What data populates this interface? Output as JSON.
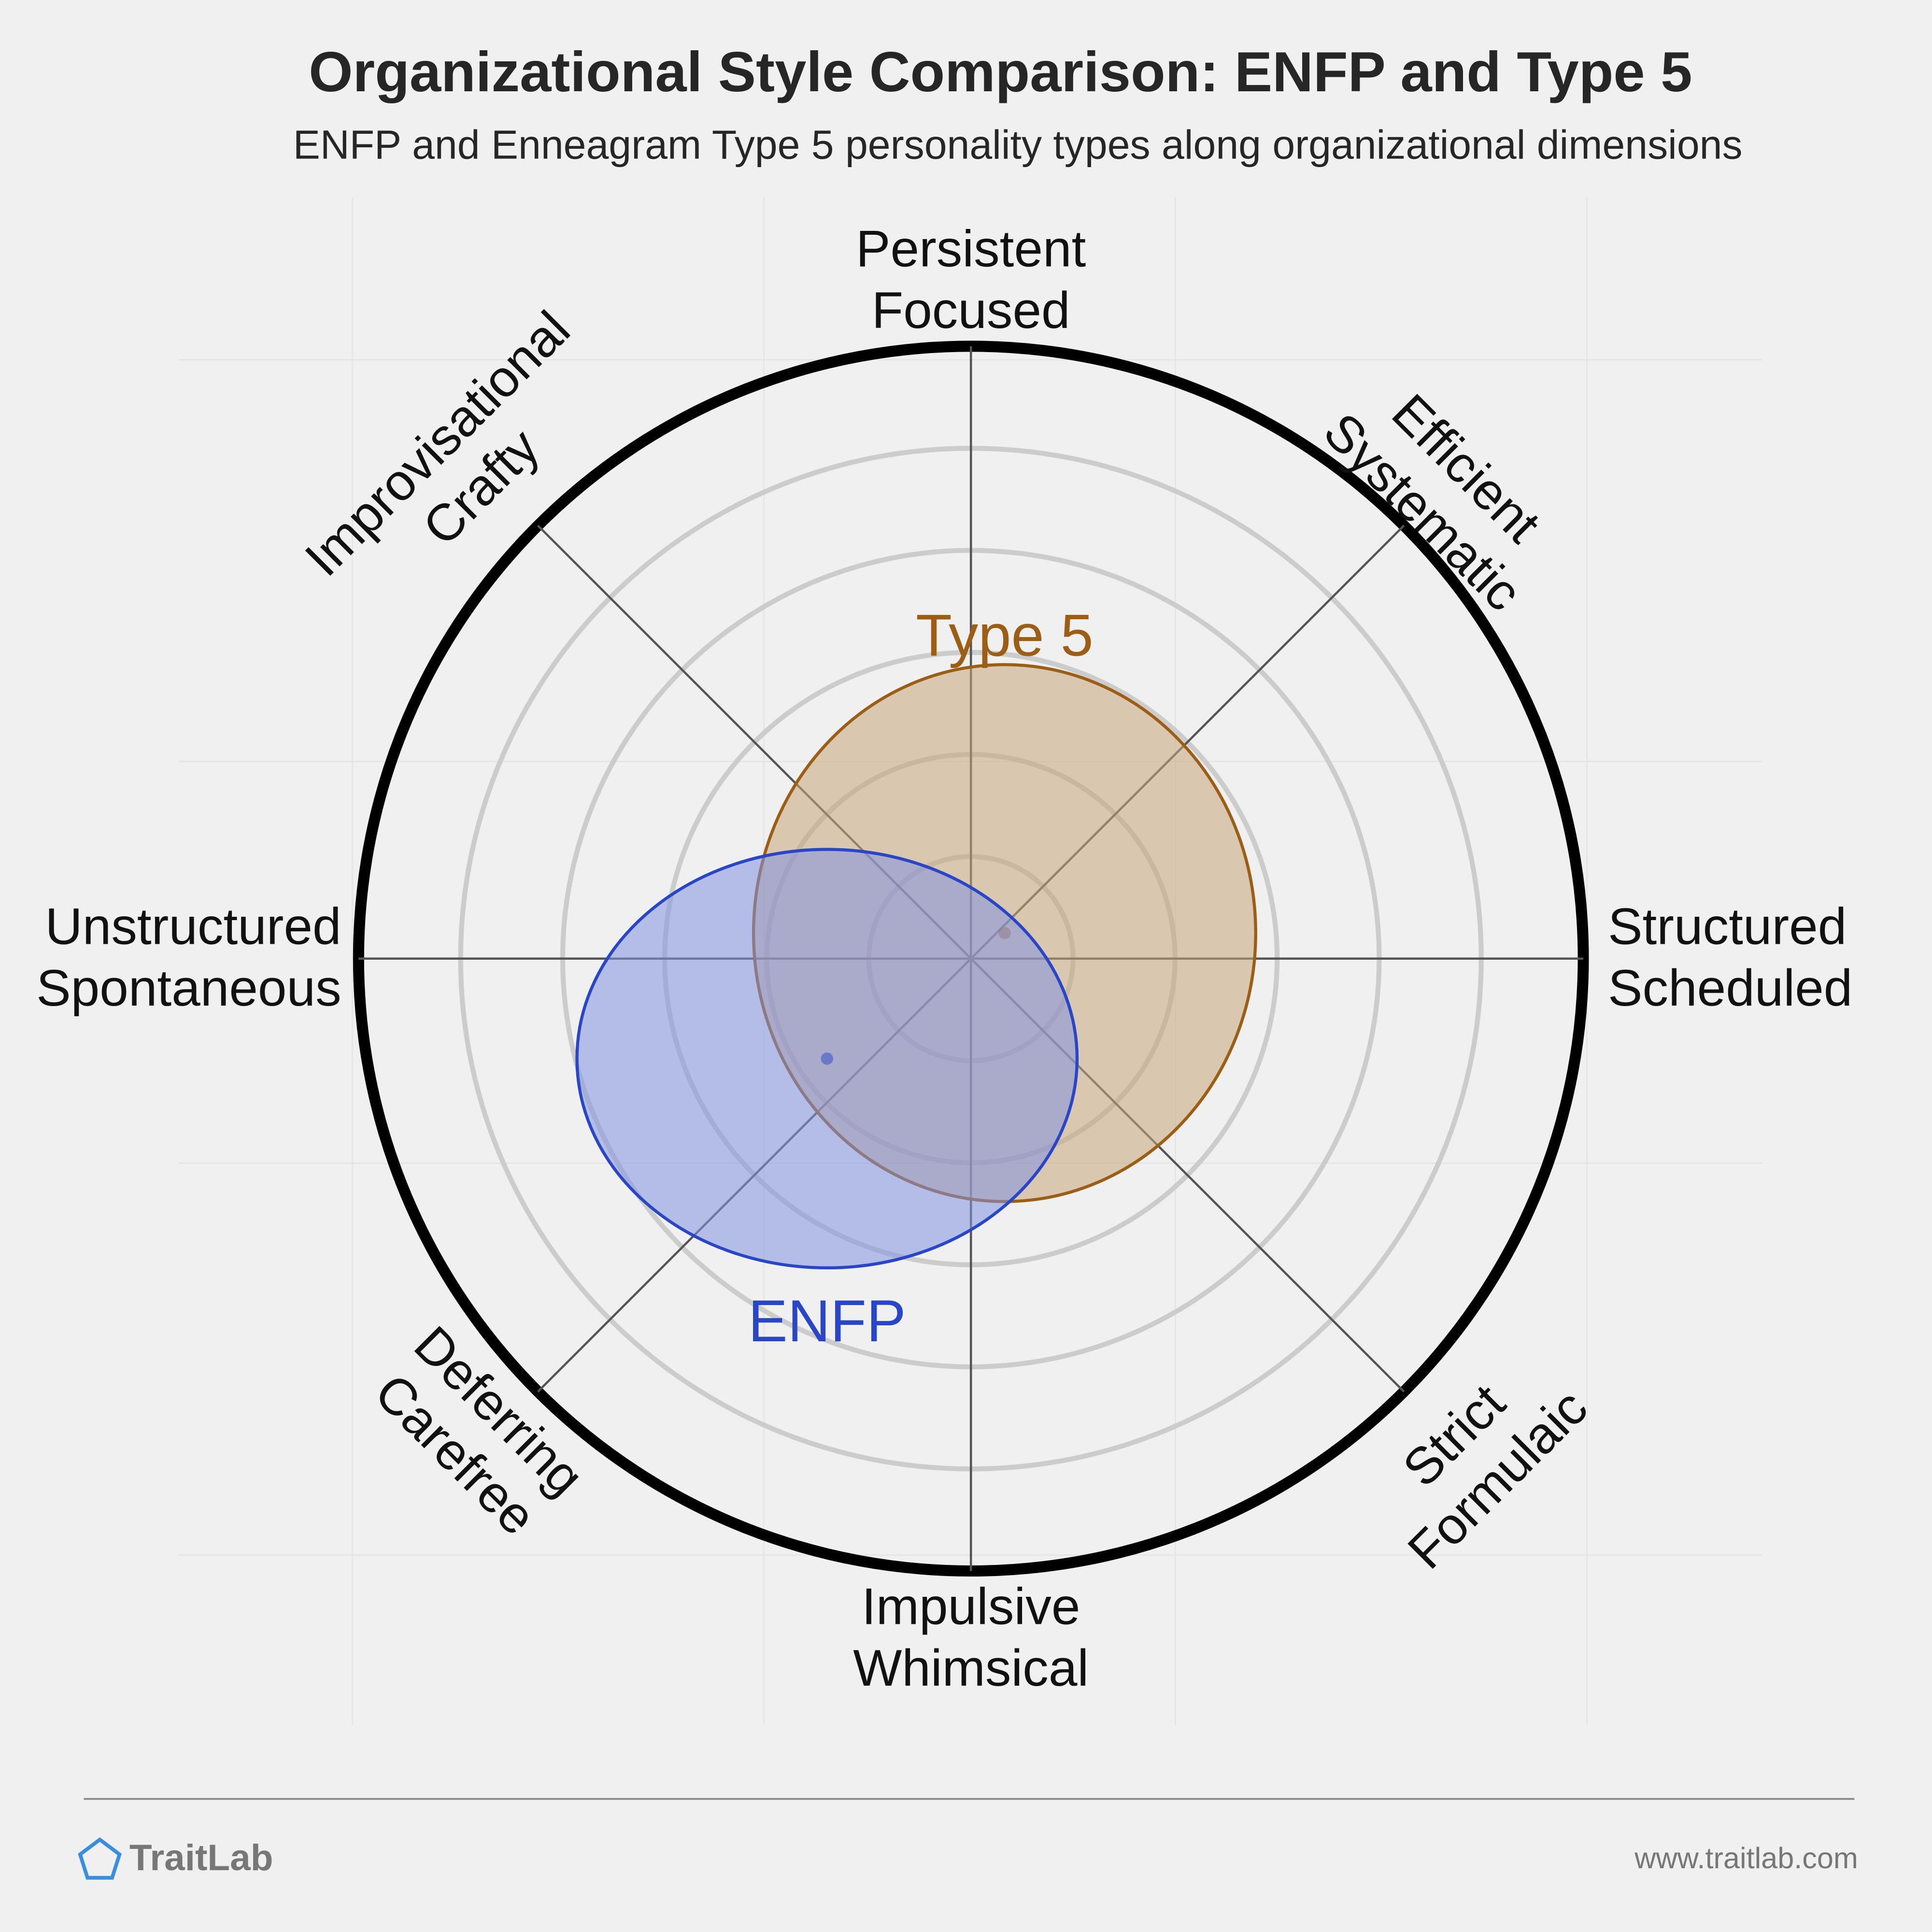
{
  "chart_data": {
    "type": "compass",
    "title": "Organizational Style Comparison: ENFP and Type 5",
    "subtitle": "ENFP and Enneagram Type 5 personality types along organizational dimensions",
    "axes": [
      [
        "Persistent",
        "Focused"
      ],
      [
        "Efficient",
        "Systematic"
      ],
      [
        "Structured",
        "Scheduled"
      ],
      [
        "Strict",
        "Formulaic"
      ],
      [
        "Impulsive",
        "Whimsical"
      ],
      [
        "Deferring",
        "Carefree"
      ],
      [
        "Unstructured",
        "Spontaneous"
      ],
      [
        "Improvisational",
        "Crafty"
      ]
    ],
    "rlim": [
      0,
      6
    ],
    "rticks": [
      1,
      2,
      3,
      4,
      5,
      6
    ],
    "series": [
      {
        "name": "Type 5",
        "color": "#9b5e14",
        "fill": "#c8a67c",
        "x": 0.33,
        "y": 0.25,
        "rx": 2.46,
        "ry": 2.63
      },
      {
        "name": "ENFP",
        "color": "#2a46c8",
        "fill": "#8492e2",
        "x": -1.41,
        "y": -0.98,
        "rx": 2.45,
        "ry": 2.05
      }
    ],
    "footer": {
      "brand": "TraitLab",
      "url": "www.traitlab.com"
    }
  }
}
